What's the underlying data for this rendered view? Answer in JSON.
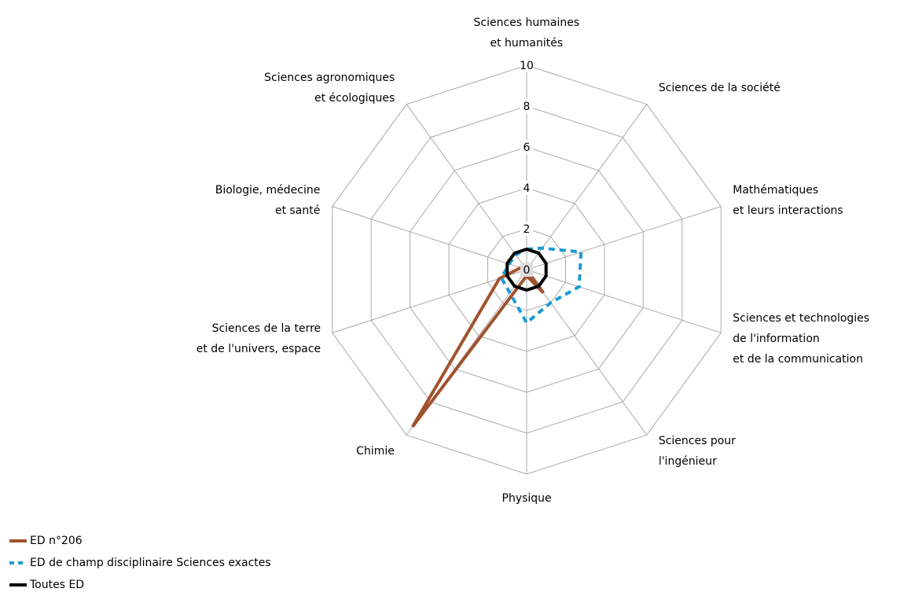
{
  "chart_data": {
    "type": "radar",
    "categories": [
      "Sciences humaines\net humanités",
      "Sciences de la société",
      "Mathématiques\net leurs interactions",
      "Sciences et technologies\nde l'information\net de la communication",
      "Sciences pour\nl'ingénieur",
      "Physique",
      "Chimie",
      "Sciences de la terre\net de l'univers, espace",
      "Biologie, médecine\net santé",
      "Sciences agronomiques\net écologiques"
    ],
    "series": [
      {
        "name": "ED n°206",
        "color": "#a0522d",
        "style": "solid",
        "values": [
          0,
          0,
          0,
          0,
          1.4,
          0.3,
          9.5,
          1.4,
          0.3,
          0
        ]
      },
      {
        "name": "ED de champ disciplinaire Sciences exactes",
        "color": "#1a9bd7",
        "style": "dashed",
        "values": [
          1,
          1.3,
          2.8,
          2.7,
          2,
          2.6,
          1.4,
          1.3,
          0.9,
          0.9
        ]
      },
      {
        "name": "Toutes ED",
        "color": "#000000",
        "style": "solid",
        "values": [
          1,
          1,
          1,
          1,
          1,
          1,
          1,
          1,
          1,
          1
        ]
      }
    ],
    "rlim": [
      0,
      10
    ],
    "rticks": [
      0,
      2,
      4,
      6,
      8,
      10
    ],
    "grid": true,
    "legend": "bottom-left"
  }
}
